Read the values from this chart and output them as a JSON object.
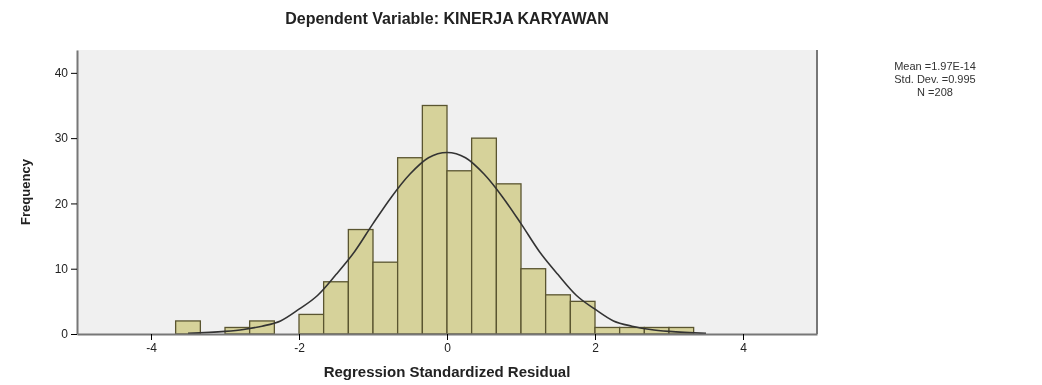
{
  "chart_data": {
    "type": "histogram",
    "title": "Dependent Variable: KINERJA KARYAWAN",
    "xlabel": "Regression Standardized Residual",
    "ylabel": "Frequency",
    "bins": [
      -3.667,
      -3.333,
      -3,
      -2.667,
      -2.333,
      -2,
      -1.667,
      -1.333,
      -1,
      -0.667,
      -0.333,
      0,
      0.333,
      0.667,
      1,
      1.333,
      1.667,
      2,
      2.333,
      2.667,
      3,
      3.333
    ],
    "values": [
      2,
      0,
      1,
      2,
      0,
      3,
      8,
      16,
      11,
      27,
      35,
      25,
      30,
      23,
      10,
      6,
      5,
      1,
      1,
      1,
      1
    ],
    "color": "#d6d29a",
    "series": [
      {
        "type": "line",
        "color": "#333333",
        "x": [
          -3.5,
          -3,
          -2.75,
          -2.5,
          -2.25,
          -2,
          -1.75,
          -1.5,
          -1.25,
          -1,
          -0.75,
          -0.5,
          -0.25,
          0,
          0.25,
          0.5,
          0.75,
          1,
          1.25,
          1.5,
          1.75,
          2,
          2.25,
          2.5,
          2.75,
          3,
          3.5
        ],
        "values": [
          0.1,
          0.4,
          0.7,
          1.2,
          2.0,
          3.8,
          5.9,
          9.1,
          12.6,
          16.9,
          21.0,
          24.5,
          27.0,
          27.8,
          27.0,
          24.5,
          21.0,
          16.9,
          12.6,
          9.1,
          5.9,
          3.8,
          2.0,
          1.2,
          0.7,
          0.4,
          0.1
        ]
      }
    ],
    "xlim": [
      -5,
      5
    ],
    "xticks": [
      -4,
      -2,
      0,
      2,
      4
    ],
    "ylim": [
      0,
      43.5
    ],
    "yticks": [
      0,
      10,
      20,
      30,
      40
    ],
    "grid": false,
    "annotations": [
      "Mean =1.97E-14\nStd. Dev. =0.995\nN =208"
    ]
  }
}
